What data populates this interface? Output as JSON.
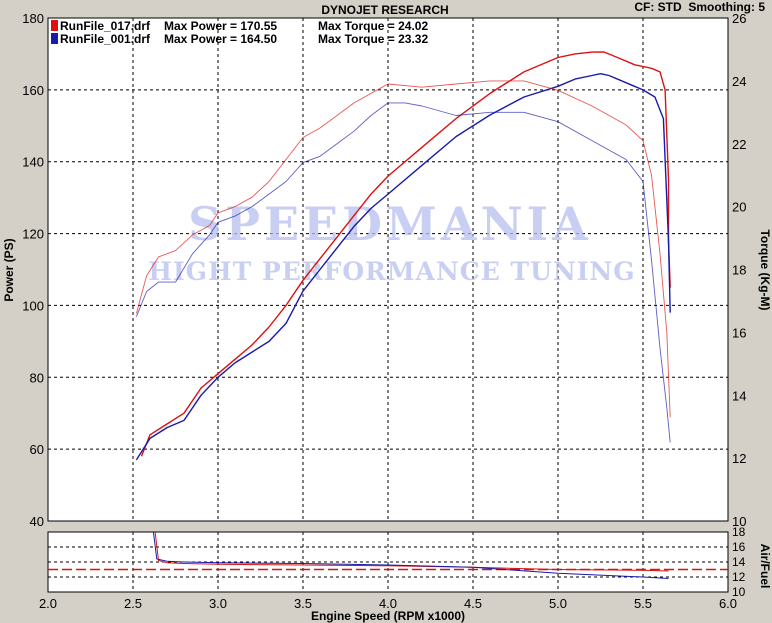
{
  "header": {
    "title": "DYNOJET RESEARCH",
    "settings": "CF: STD  Smoothing: 5"
  },
  "legend": [
    {
      "file": "RunFile_017.drf",
      "power_text": "Max Power = 170.55",
      "torque_text": "Max Torque = 24.02",
      "color": "#dd1111"
    },
    {
      "file": "RunFile_001.drf",
      "power_text": "Max Power = 164.50",
      "torque_text": "Max Torque = 23.32",
      "color": "#1a1aaa"
    }
  ],
  "watermark": {
    "line1": "SPEEDMANIA",
    "line2": "HIGHT PERFORMANCE TUNING"
  },
  "colors": {
    "background": "#d4d0c8",
    "plot_bg": "#ffffff",
    "run_017": "#dd1111",
    "run_001": "#1a1aaa",
    "afr_target": "#dd1111"
  },
  "chart_data": [
    {
      "type": "line",
      "xlabel": "Engine Speed (RPM x1000)",
      "ylabel": "Power (PS)",
      "y2label": "Torque (Kg-M)",
      "xlim": [
        2.0,
        6.0
      ],
      "ylim": [
        40,
        180
      ],
      "y2lim": [
        10,
        26
      ],
      "x_ticks": [
        "2.0",
        "2.5",
        "3.0",
        "3.5",
        "4.0",
        "4.5",
        "5.0",
        "5.5",
        "6.0"
      ],
      "y_ticks": [
        "40",
        "60",
        "80",
        "100",
        "120",
        "140",
        "160",
        "180"
      ],
      "y2_ticks": [
        "10",
        "12",
        "14",
        "16",
        "18",
        "20",
        "22",
        "24",
        "26"
      ],
      "grid": true,
      "series": [
        {
          "name": "RunFile_017.drf",
          "measure": "power",
          "axis": "left",
          "color": "#dd1111",
          "x": [
            2.55,
            2.6,
            2.7,
            2.8,
            2.9,
            3.0,
            3.1,
            3.2,
            3.3,
            3.4,
            3.5,
            3.6,
            3.7,
            3.8,
            3.9,
            4.0,
            4.2,
            4.4,
            4.6,
            4.8,
            5.0,
            5.1,
            5.2,
            5.27,
            5.35,
            5.45,
            5.55,
            5.6,
            5.63,
            5.65,
            5.65,
            5.66
          ],
          "y": [
            58,
            64,
            67,
            70,
            77,
            81,
            85,
            89,
            94,
            100,
            107,
            113,
            119,
            125,
            131,
            136,
            144,
            152,
            159,
            165,
            169,
            170,
            170.5,
            170.55,
            169,
            167,
            166,
            165,
            160,
            135,
            118,
            105
          ]
        },
        {
          "name": "RunFile_001.drf",
          "measure": "power",
          "axis": "left",
          "color": "#1a1aaa",
          "x": [
            2.52,
            2.6,
            2.7,
            2.8,
            2.9,
            3.0,
            3.1,
            3.2,
            3.3,
            3.4,
            3.5,
            3.6,
            3.7,
            3.8,
            3.9,
            4.0,
            4.2,
            4.4,
            4.6,
            4.8,
            5.0,
            5.1,
            5.2,
            5.25,
            5.3,
            5.4,
            5.5,
            5.57,
            5.62,
            5.65,
            5.66
          ],
          "y": [
            57,
            63,
            66,
            68,
            75,
            80,
            84,
            87,
            90,
            95,
            104,
            110,
            116,
            122,
            127,
            131,
            139,
            147,
            153,
            158,
            161,
            163,
            164,
            164.5,
            164,
            162,
            160,
            158,
            152,
            118,
            98
          ]
        },
        {
          "name": "RunFile_017.drf",
          "measure": "torque",
          "axis": "right",
          "color": "#dd1111",
          "x": [
            2.52,
            2.58,
            2.65,
            2.75,
            2.85,
            2.95,
            3.0,
            3.1,
            3.2,
            3.3,
            3.4,
            3.5,
            3.6,
            3.7,
            3.8,
            3.9,
            4.0,
            4.2,
            4.4,
            4.6,
            4.8,
            5.0,
            5.2,
            5.4,
            5.5,
            5.55,
            5.6,
            5.64,
            5.66
          ],
          "y": [
            16.6,
            17.8,
            18.4,
            18.6,
            19.1,
            19.4,
            19.8,
            20.0,
            20.3,
            20.8,
            21.5,
            22.2,
            22.5,
            22.9,
            23.3,
            23.6,
            23.9,
            23.8,
            23.9,
            24.0,
            24.0,
            23.7,
            23.2,
            22.6,
            22.1,
            21.0,
            18.5,
            16.0,
            13.3
          ]
        },
        {
          "name": "RunFile_001.drf",
          "measure": "torque",
          "axis": "right",
          "color": "#1a1aaa",
          "x": [
            2.52,
            2.58,
            2.65,
            2.75,
            2.85,
            2.95,
            3.0,
            3.1,
            3.2,
            3.3,
            3.4,
            3.5,
            3.6,
            3.7,
            3.8,
            3.9,
            4.0,
            4.1,
            4.2,
            4.4,
            4.6,
            4.8,
            5.0,
            5.2,
            5.4,
            5.5,
            5.55,
            5.6,
            5.64,
            5.66
          ],
          "y": [
            16.5,
            17.3,
            17.6,
            17.6,
            18.5,
            19.1,
            19.5,
            19.7,
            20.0,
            20.4,
            20.8,
            21.4,
            21.6,
            22.0,
            22.4,
            22.9,
            23.3,
            23.3,
            23.2,
            22.9,
            23.0,
            23.0,
            22.7,
            22.1,
            21.5,
            20.8,
            18.3,
            15.5,
            13.6,
            12.5
          ]
        }
      ]
    },
    {
      "type": "line",
      "ylabel": "Air/Fuel",
      "xlim": [
        2.0,
        6.0
      ],
      "ylim": [
        10,
        18
      ],
      "y_ticks": [
        "10",
        "12",
        "14",
        "16",
        "18"
      ],
      "grid": true,
      "target_afr": 13.0,
      "series": [
        {
          "name": "RunFile_017.drf",
          "color": "#dd1111",
          "x": [
            2.63,
            2.65,
            2.7,
            2.8,
            3.0,
            3.5,
            4.0,
            4.5,
            5.0,
            5.5,
            5.65
          ],
          "y": [
            18,
            14.2,
            13.9,
            13.8,
            13.7,
            13.6,
            13.5,
            13.3,
            13.0,
            12.9,
            12.8
          ]
        },
        {
          "name": "RunFile_001.drf",
          "color": "#1a1aaa",
          "x": [
            2.62,
            2.64,
            2.7,
            2.8,
            3.0,
            3.5,
            4.0,
            4.5,
            5.0,
            5.5,
            5.65
          ],
          "y": [
            18,
            14.4,
            14.1,
            14.0,
            13.9,
            13.8,
            13.6,
            13.3,
            12.5,
            12.0,
            11.8
          ]
        }
      ]
    }
  ]
}
